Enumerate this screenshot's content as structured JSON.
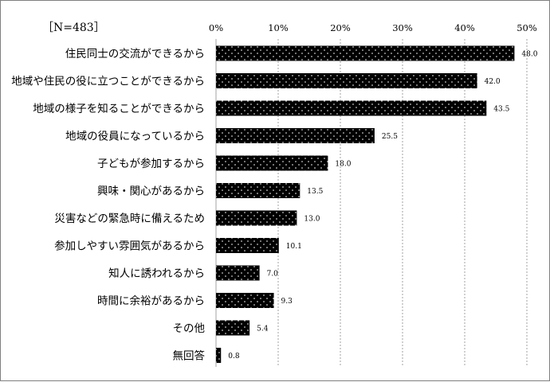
{
  "n_label": "［N=483］",
  "chart_data": {
    "type": "bar",
    "orientation": "horizontal",
    "title": "",
    "xlabel": "",
    "ylabel": "",
    "xlim": [
      0,
      50
    ],
    "ticks": [
      0,
      10,
      20,
      30,
      40,
      50
    ],
    "tick_labels": [
      "0%",
      "10%",
      "20%",
      "30%",
      "40%",
      "50%"
    ],
    "grid": "vertical-dashed",
    "bar_fill": "black-with-white-dots",
    "bar_color": "#000000",
    "categories": [
      "住民同士の交流ができるから",
      "地域や住民の役に立つことができるから",
      "地域の様子を知ることができるから",
      "地域の役員になっているから",
      "子どもが参加するから",
      "興味・関心があるから",
      "災害などの緊急時に備えるため",
      "参加しやすい雰囲気があるから",
      "知人に誘われるから",
      "時間に余裕があるから",
      "その他",
      "無回答"
    ],
    "values": [
      48.0,
      42.0,
      43.5,
      25.5,
      18.0,
      13.5,
      13.0,
      10.1,
      7.0,
      9.3,
      5.4,
      0.8
    ],
    "value_labels": [
      "48.0",
      "42.0",
      "43.5",
      "25.5",
      "18.0",
      "13.5",
      "13.0",
      "10.1",
      "7.0",
      "9.3",
      "5.4",
      "0.8"
    ]
  }
}
